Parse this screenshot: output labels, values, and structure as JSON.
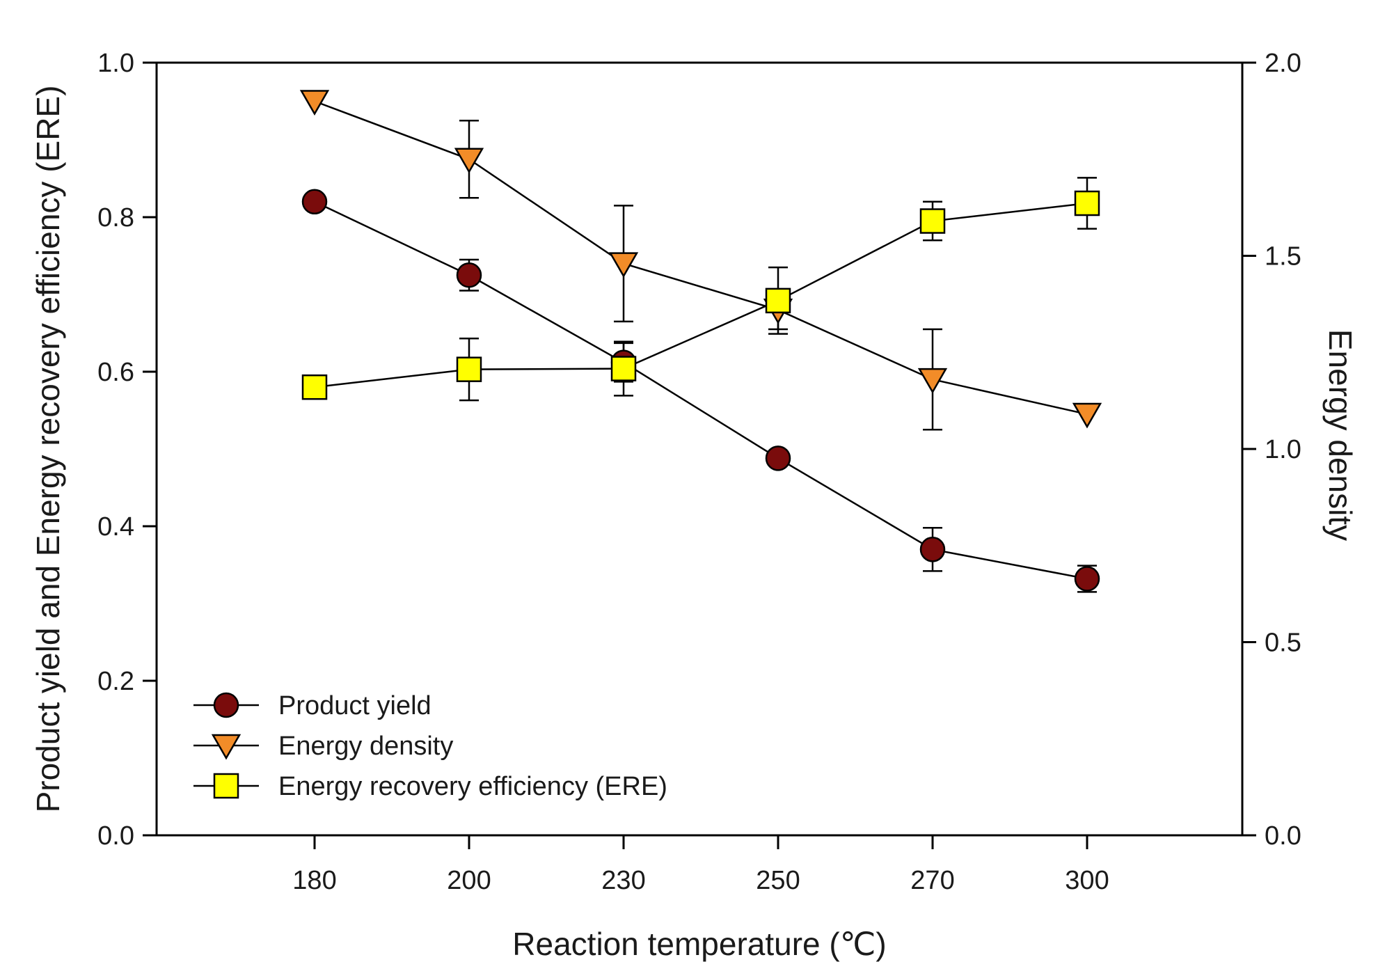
{
  "chart_data": {
    "type": "line",
    "title": "",
    "xlabel": "Reaction temperature (℃)",
    "ylabel_left": "Product yield and Energy recovery efficiency (ERE)",
    "ylabel_right": "Energy density",
    "categories": [
      "180",
      "200",
      "230",
      "250",
      "270",
      "300"
    ],
    "ylim_left": [
      0,
      1.0
    ],
    "ylim_right": [
      0,
      2.0
    ],
    "yticks_left": [
      "0.0",
      "0.2",
      "0.4",
      "0.6",
      "0.8",
      "1.0"
    ],
    "yticks_right": [
      "0.0",
      "0.5",
      "1.0",
      "1.5",
      "2.0"
    ],
    "grid": false,
    "legend_position": "bottom-left",
    "series": [
      {
        "name": "Product yield",
        "axis": "left",
        "marker": "circle",
        "color": "#7a0c0c",
        "values": [
          0.82,
          0.725,
          0.612,
          0.488,
          0.37,
          0.332
        ],
        "errors": [
          0,
          0.02,
          0.025,
          0,
          0.028,
          0.017
        ]
      },
      {
        "name": "Energy density",
        "axis": "right",
        "marker": "triangle-down",
        "color": "#f28c28",
        "values": [
          1.9,
          1.75,
          1.48,
          1.36,
          1.18,
          1.09
        ],
        "errors": [
          0,
          0.1,
          0.15,
          0.05,
          0.13,
          0
        ]
      },
      {
        "name": "Energy recovery efficiency (ERE)",
        "axis": "left",
        "marker": "square",
        "color": "#ffff00",
        "values": [
          0.58,
          0.603,
          0.604,
          0.692,
          0.795,
          0.818
        ],
        "errors": [
          0,
          0.04,
          0.035,
          0.043,
          0.025,
          0.033
        ]
      }
    ]
  }
}
